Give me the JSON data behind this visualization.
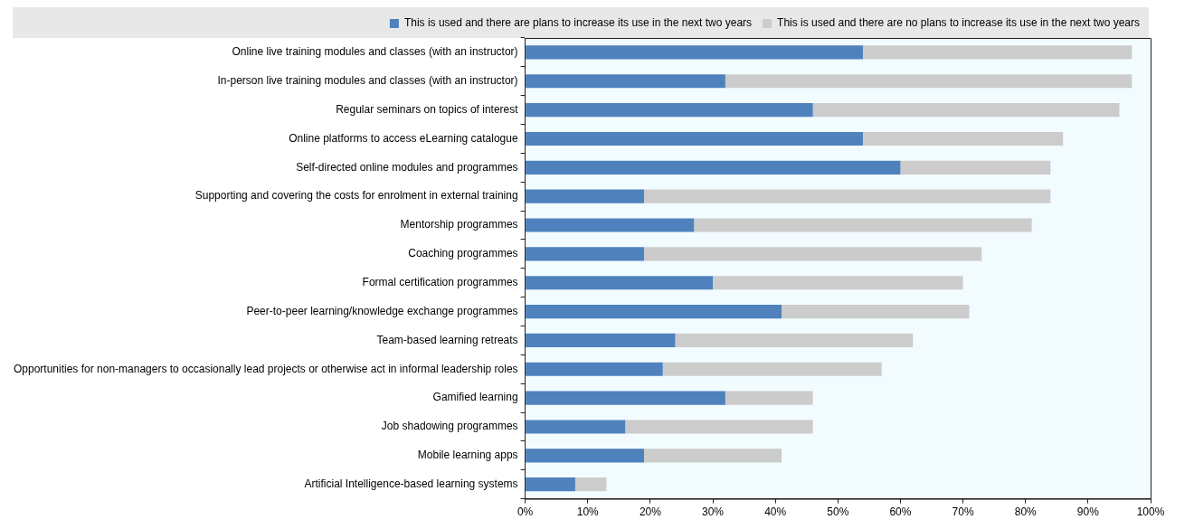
{
  "chart_data": {
    "type": "bar",
    "orientation": "horizontal",
    "stacked": true,
    "categories": [
      "Online live training modules and classes (with an instructor)",
      "In-person live training modules and classes (with an instructor)",
      "Regular seminars on topics of interest",
      "Online platforms to access eLearning catalogue",
      "Self-directed online modules and programmes",
      "Supporting and covering the costs for enrolment in external training",
      "Mentorship programmes",
      "Coaching programmes",
      "Formal certification programmes",
      "Peer-to-peer learning/knowledge exchange programmes",
      "Team-based learning retreats",
      "Opportunities for non-managers to occasionally lead projects or otherwise act in informal leadership roles",
      "Gamified learning",
      "Job shadowing programmes",
      "Mobile learning apps",
      "Artificial Intelligence-based learning systems"
    ],
    "series": [
      {
        "name": "This is used and there are plans to increase its use in the next two years",
        "color": "#4f81bd",
        "values": [
          54,
          32,
          46,
          54,
          60,
          19,
          27,
          19,
          30,
          41,
          24,
          22,
          32,
          16,
          19,
          8
        ]
      },
      {
        "name": "This is used and there are no plans to increase its use in the next two years",
        "color": "#cccccc",
        "values": [
          43,
          65,
          49,
          32,
          24,
          65,
          54,
          54,
          40,
          30,
          38,
          35,
          14,
          30,
          22,
          5
        ]
      }
    ],
    "xlim": [
      0,
      100
    ],
    "xticks": [
      {
        "value": 0,
        "label": "0%"
      },
      {
        "value": 10,
        "label": "10%"
      },
      {
        "value": 20,
        "label": "20%"
      },
      {
        "value": 30,
        "label": "30%"
      },
      {
        "value": 40,
        "label": "40%"
      },
      {
        "value": 50,
        "label": "50%"
      },
      {
        "value": 60,
        "label": "60%"
      },
      {
        "value": 70,
        "label": "70%"
      },
      {
        "value": 80,
        "label": "80%"
      },
      {
        "value": 90,
        "label": "90%"
      },
      {
        "value": 100,
        "label": "100%"
      }
    ],
    "grid": false,
    "legend": "top"
  }
}
